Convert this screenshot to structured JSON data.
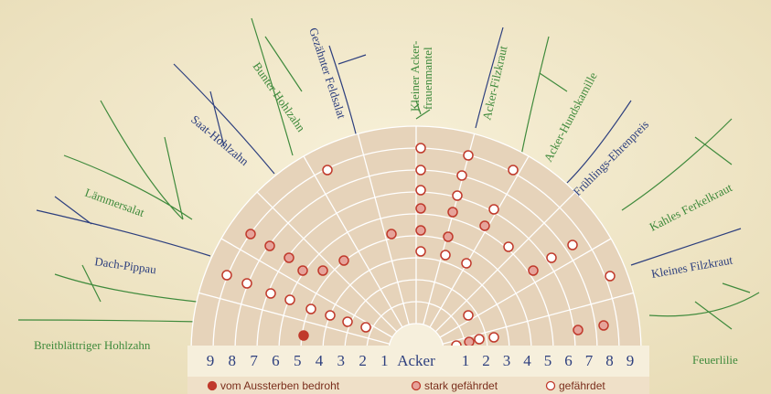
{
  "species": [
    [
      "Breitblättriger Hohlzahn"
    ],
    [
      "Dach-Pippau"
    ],
    [
      "Lämmersalat"
    ],
    [
      "Saat-Hohlzahn"
    ],
    [
      "Bunter Hohlzahn"
    ],
    [
      "Gezähnter Feldsalat"
    ],
    [
      "Kleiner Acker-",
      "frauenmantel"
    ],
    [
      "Acker-Filzkraut"
    ],
    [
      "Acker-Hundskamille"
    ],
    [
      "Frühlings-Ehrenpreis"
    ],
    [
      "Kahles Ferkelkraut"
    ],
    [
      "Kleines Filzkraut"
    ],
    [
      "Feuerlilie"
    ]
  ],
  "scale": {
    "left": [
      "9",
      "8",
      "7",
      "6",
      "5",
      "4",
      "3",
      "2",
      "1"
    ],
    "center": "Acker",
    "right": [
      "1",
      "2",
      "3",
      "4",
      "5",
      "6",
      "7",
      "8",
      "9"
    ]
  },
  "legend": [
    "vom Aussterben bedroht",
    "stark gefährdet",
    "gefährdet"
  ]
}
